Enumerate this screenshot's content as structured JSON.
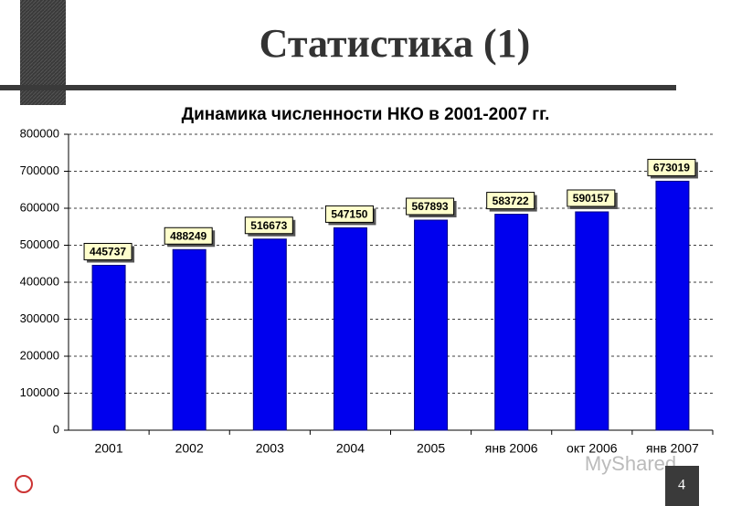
{
  "slide_title": "Статистика (1)",
  "slide_number": 4,
  "watermark": "MyShared",
  "chart_data": {
    "type": "bar",
    "title": "Динамика численности НКО в 2001-2007 гг.",
    "categories": [
      "2001",
      "2002",
      "2003",
      "2004",
      "2005",
      "янв 2006",
      "окт 2006",
      "янв 2007"
    ],
    "values": [
      445737,
      488249,
      516673,
      547150,
      567893,
      583722,
      590157,
      673019
    ],
    "color": "#0000ee",
    "ylim": [
      0,
      800000
    ],
    "yticks": [
      0,
      100000,
      200000,
      300000,
      400000,
      500000,
      600000,
      700000,
      800000
    ],
    "grid": true
  }
}
